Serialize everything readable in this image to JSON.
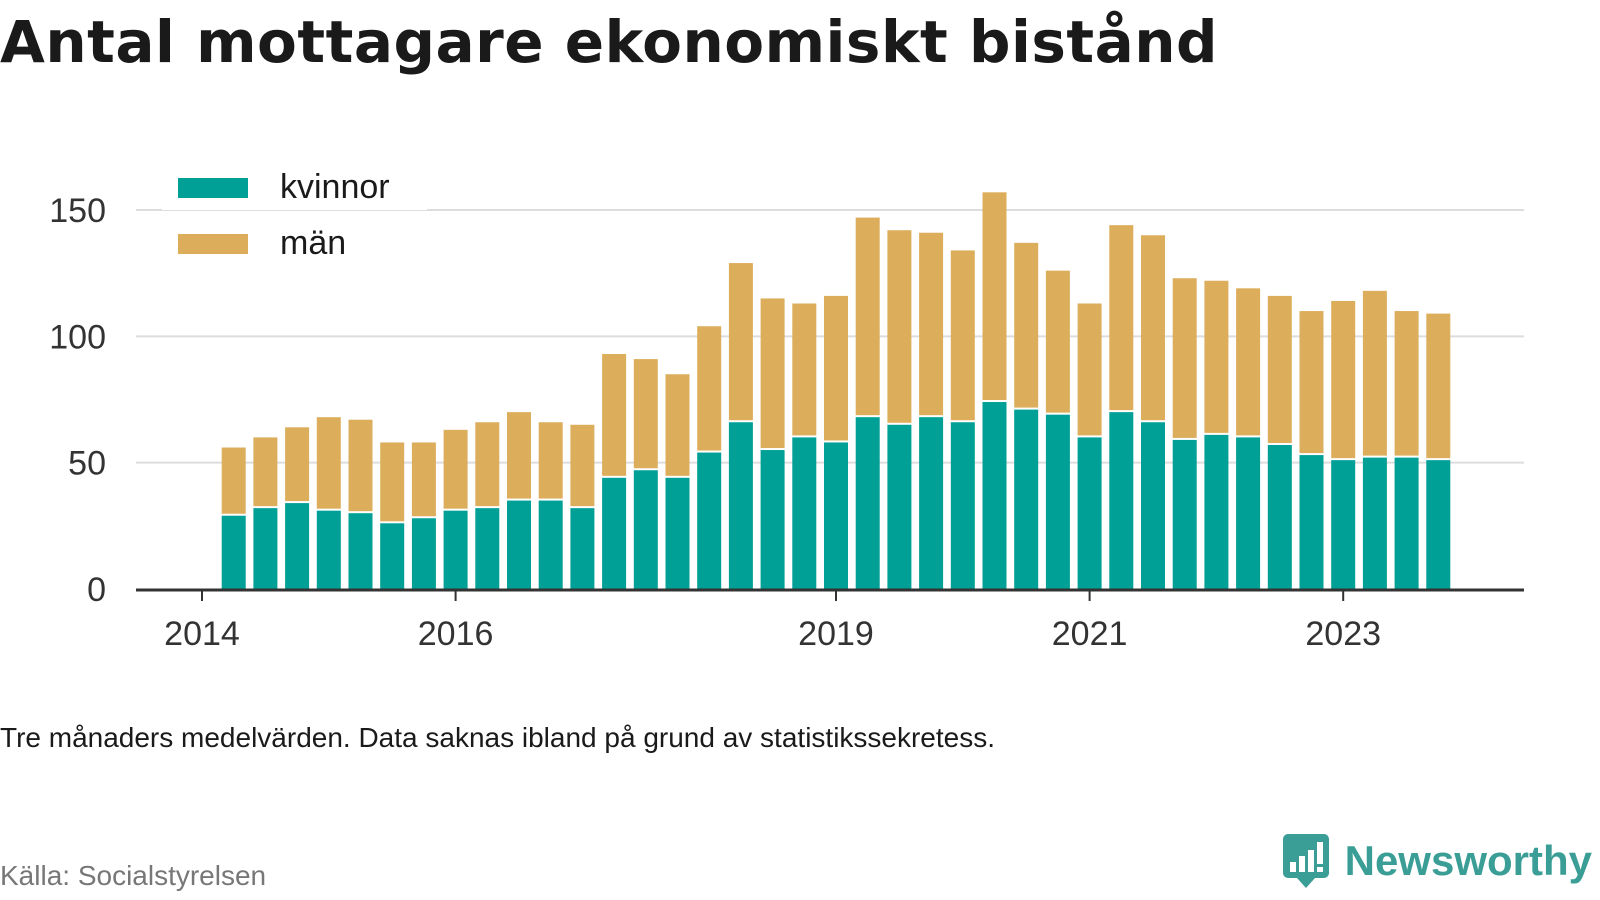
{
  "title": "Antal mottagare ekonomiskt bistånd",
  "note": "Tre månaders medelvärden. Data saknas ibland på grund av statistikssekretess.",
  "source": "Källa: Socialstyrelsen",
  "brand": {
    "name": "Newsworthy",
    "color": "#3a9e96",
    "logo_icon": "bar-chart-speech-bubble-icon"
  },
  "colors": {
    "kvinnor": "#00a096",
    "man": "#dcae5c",
    "axis": "#333333",
    "grid": "#dddddd",
    "text": "#333333"
  },
  "chart_data": {
    "type": "bar",
    "stacked": true,
    "x_ticks": [
      "2014",
      "2016",
      "2019",
      "2021",
      "2023"
    ],
    "x_tick_positions_in_periods": [
      0,
      8,
      20,
      28,
      36
    ],
    "first_bar_period": 1,
    "y_ticks": [
      0,
      50,
      100,
      150
    ],
    "ylim": [
      0,
      165
    ],
    "grid": true,
    "legend_position": "top-left",
    "series": [
      {
        "name": "kvinnor",
        "values": [
          29,
          32,
          34,
          31,
          30,
          26,
          28,
          31,
          32,
          35,
          35,
          32,
          44,
          47,
          44,
          54,
          66,
          55,
          60,
          58,
          68,
          65,
          68,
          66,
          74,
          71,
          69,
          60,
          70,
          66,
          59,
          61,
          60,
          57,
          53,
          51,
          52,
          52,
          51
        ]
      },
      {
        "name": "män",
        "values": [
          27,
          28,
          30,
          37,
          37,
          32,
          30,
          32,
          34,
          35,
          31,
          33,
          49,
          44,
          41,
          50,
          63,
          60,
          53,
          58,
          79,
          77,
          73,
          68,
          83,
          66,
          57,
          53,
          74,
          74,
          64,
          61,
          59,
          59,
          57,
          63,
          66,
          58,
          58
        ]
      }
    ]
  }
}
